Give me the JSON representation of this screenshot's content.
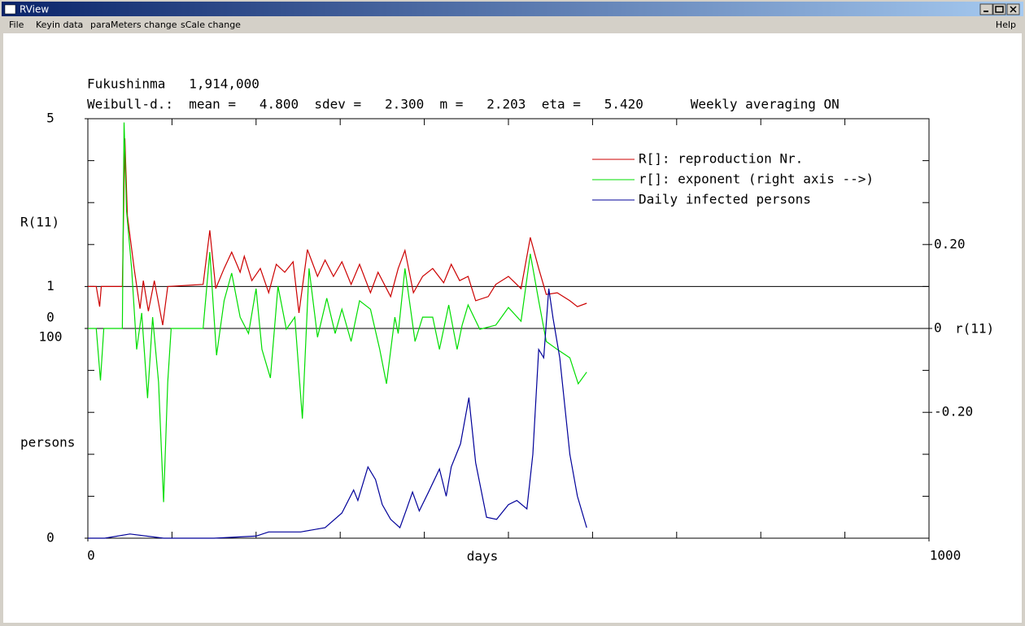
{
  "window": {
    "title": "RView",
    "menu": [
      "File",
      "Keyin data",
      "paraMeters change",
      "sCale change"
    ],
    "help": "Help"
  },
  "chart_data": {
    "type": "line",
    "title": "Fukushinma   1,914,000",
    "subtitle": "Weibull-d.:  mean =   4.800  sdev =   2.300  m =   2.203  eta =   5.420      Weekly averaging ON",
    "xlabel": "days",
    "xlim": [
      0,
      1000
    ],
    "xticks": [
      0,
      1000
    ],
    "ylabel": "R(11)",
    "ylim": [
      -5,
      5
    ],
    "yticks": [
      5,
      1,
      0
    ],
    "y2label": "r(11)",
    "y2lim": [
      -0.5,
      0.5
    ],
    "y2ticks": [
      {
        "value": 0.2,
        "label": "0.20"
      },
      0,
      {
        "value": -0.2,
        "label": "-0.20"
      }
    ],
    "y3label": "persons",
    "y3lim": [
      0,
      200
    ],
    "y3ticks": [
      0,
      100
    ],
    "reference_lines": [
      {
        "axis": "y",
        "value": 1
      },
      {
        "axis": "y2",
        "value": 0
      }
    ],
    "legend": "upper right",
    "series": [
      {
        "name": "R[]: reproduction Nr.",
        "color": "#cc0000",
        "axis": "y",
        "x": [
          0,
          10,
          14,
          16,
          41,
          44,
          47,
          55,
          62,
          66,
          72,
          79,
          89,
          95,
          137,
          145,
          152,
          162,
          171,
          181,
          186,
          195,
          205,
          215,
          224,
          234,
          244,
          251,
          261,
          273,
          282,
          292,
          302,
          313,
          323,
          336,
          345,
          360,
          369,
          377,
          387,
          398,
          410,
          423,
          432,
          442,
          452,
          461,
          476,
          485,
          500,
          515,
          526,
          536,
          545,
          558,
          573,
          582,
          593
        ],
        "values": [
          1.0,
          1.0,
          0.52,
          1.0,
          1.0,
          4.53,
          2.69,
          1.43,
          0.47,
          1.14,
          0.41,
          1.14,
          0.08,
          1.0,
          1.05,
          2.34,
          0.95,
          1.43,
          1.82,
          1.34,
          1.72,
          1.14,
          1.43,
          0.85,
          1.53,
          1.34,
          1.59,
          0.37,
          1.88,
          1.24,
          1.63,
          1.24,
          1.59,
          1.05,
          1.53,
          0.85,
          1.34,
          0.76,
          1.43,
          1.86,
          0.85,
          1.24,
          1.43,
          1.09,
          1.53,
          1.14,
          1.24,
          0.66,
          0.76,
          1.05,
          1.24,
          0.95,
          2.17,
          1.43,
          0.81,
          0.85,
          0.66,
          0.52,
          0.6
        ]
      },
      {
        "name": "r[]: exponent (right axis -->)",
        "color": "#00dd00",
        "axis": "y2",
        "x": [
          0,
          10,
          15,
          19,
          41,
          43,
          46,
          52,
          58,
          64,
          71,
          77,
          84,
          90,
          95,
          99,
          137,
          145,
          153,
          162,
          171,
          181,
          191,
          200,
          207,
          217,
          226,
          236,
          246,
          255,
          263,
          273,
          284,
          294,
          302,
          313,
          323,
          336,
          347,
          355,
          365,
          369,
          377,
          389,
          398,
          410,
          418,
          429,
          439,
          445,
          452,
          466,
          485,
          500,
          515,
          526,
          536,
          545,
          558,
          573,
          583,
          593
        ],
        "values": [
          0,
          0,
          -0.124,
          0,
          0,
          0.491,
          0.279,
          0.143,
          -0.05,
          0.037,
          -0.166,
          0.027,
          -0.128,
          -0.414,
          -0.128,
          0,
          0,
          0.182,
          -0.064,
          0.066,
          0.132,
          0.027,
          -0.012,
          0.095,
          -0.05,
          -0.118,
          0.101,
          -0.002,
          0.027,
          -0.215,
          0.143,
          -0.021,
          0.072,
          -0.012,
          0.046,
          -0.031,
          0.066,
          0.046,
          -0.05,
          -0.132,
          0.027,
          -0.012,
          0.143,
          -0.031,
          0.027,
          0.027,
          -0.05,
          0.056,
          -0.05,
          0.008,
          0.056,
          -0.002,
          0.008,
          0.05,
          0.017,
          0.178,
          0.066,
          -0.031,
          -0.05,
          -0.07,
          -0.132,
          -0.104
        ]
      },
      {
        "name": "Daily infected persons",
        "color": "#000099",
        "axis": "y3",
        "x": [
          0,
          20,
          50,
          90,
          150,
          200,
          215,
          253,
          282,
          302,
          316,
          321,
          333,
          342,
          350,
          360,
          371,
          379,
          386,
          394,
          405,
          418,
          426,
          432,
          443,
          453,
          461,
          474,
          486,
          500,
          510,
          522,
          529,
          536,
          542,
          548,
          553,
          561,
          573,
          582,
          593
        ],
        "values": [
          0,
          0,
          2,
          0,
          0,
          1,
          3,
          3,
          5,
          12,
          23,
          18,
          34,
          28,
          16,
          9,
          5,
          14,
          22,
          13,
          22,
          33,
          20,
          34,
          45,
          67,
          36,
          10,
          9,
          16,
          18,
          14,
          40,
          90,
          86,
          119,
          105,
          86,
          40,
          20,
          5
        ]
      }
    ]
  }
}
